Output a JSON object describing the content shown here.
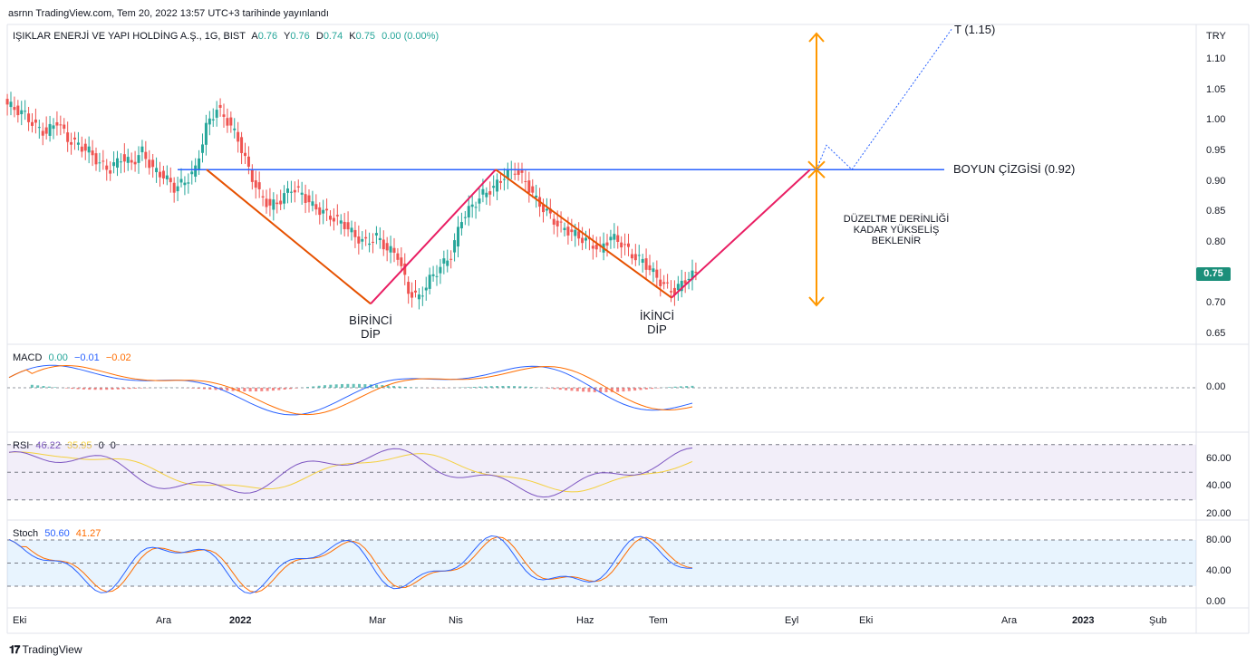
{
  "header": {
    "published_line": "asrnn TradingView.com, Tem 20, 2022 13:57 UTC+3 tarihinde yayınlandı"
  },
  "main_legend": {
    "symbol": "IŞIKLAR ENERJİ VE YAPI HOLDİNG A.Ş., 1G, BIST",
    "open_label": "A",
    "open": "0.76",
    "high_label": "Y",
    "high": "0.76",
    "low_label": "D",
    "low": "0.74",
    "close_label": "K",
    "close": "0.75",
    "change": "0.00 (0.00%)"
  },
  "currency": "TRY",
  "last_price_tag": "0.75",
  "price_axis_ticks": [
    "1.10",
    "1.05",
    "1.00",
    "0.95",
    "0.90",
    "0.85",
    "0.80",
    "0.75",
    "0.70",
    "0.65"
  ],
  "annotations": {
    "neckline": "BOYUN ÇİZGİSİ (0.92)",
    "target": "T (1.15)",
    "first_bottom_line1": "BİRİNCİ",
    "first_bottom_line2": "DİP",
    "second_bottom_line1": "İKİNCİ",
    "second_bottom_line2": "DİP",
    "correction_line1": "DÜZELTME DERİNLİĞİ",
    "correction_line2": "KADAR YÜKSELİŞ",
    "correction_line3": "BEKLENİR"
  },
  "macd": {
    "label": "MACD",
    "hist": "0.00",
    "macd": "−0.01",
    "signal": "−0.02",
    "axis_tick": "0.00"
  },
  "rsi": {
    "label": "RSI",
    "value": "46.22",
    "ma": "35.95",
    "extra1": "0",
    "extra2": "0",
    "axis_ticks": [
      "60.00",
      "40.00",
      "20.00"
    ]
  },
  "stoch": {
    "label": "Stoch",
    "k": "50.60",
    "d": "41.27",
    "axis_ticks": [
      "80.00",
      "40.00",
      "0.00"
    ]
  },
  "time_axis": [
    {
      "label": "Eki",
      "bold": false
    },
    {
      "label": "Ara",
      "bold": false
    },
    {
      "label": "2022",
      "bold": true
    },
    {
      "label": "Mar",
      "bold": false
    },
    {
      "label": "Nis",
      "bold": false
    },
    {
      "label": "Haz",
      "bold": false
    },
    {
      "label": "Tem",
      "bold": false
    },
    {
      "label": "Eyl",
      "bold": false
    },
    {
      "label": "Eki",
      "bold": false
    },
    {
      "label": "Ara",
      "bold": false
    },
    {
      "label": "2023",
      "bold": true
    },
    {
      "label": "Şub",
      "bold": false
    }
  ],
  "footer": {
    "brand": "TradingView"
  },
  "colors": {
    "up": "#26a69a",
    "down": "#ef5350",
    "neckline": "#2962ff",
    "pattern_left": "#e65100",
    "projection": "#e91e63",
    "target_arrow": "#ff9800",
    "macd": "#2962ff",
    "signal": "#ff6d00",
    "rsi": "#7e57c2",
    "rsi_ma": "#f4d03f",
    "stoch_k": "#2962ff",
    "stoch_d": "#ff6d00"
  },
  "chart_data": {
    "type": "candlestick",
    "title": "IŞIKLAR ENERJİ VE YAPI HOLDİNG A.Ş., 1G, BIST",
    "ylabel": "TRY",
    "ylim": [
      0.65,
      1.15
    ],
    "neckline": 0.92,
    "target": 1.15,
    "pattern_points": [
      {
        "label": "start",
        "close": 0.92
      },
      {
        "label": "first_bottom",
        "close": 0.7
      },
      {
        "label": "peak",
        "close": 0.92
      },
      {
        "label": "second_bottom",
        "close": 0.71
      },
      {
        "label": "breakout",
        "close": 0.92
      }
    ],
    "close_series": [
      1.02,
      1.01,
      0.99,
      0.98,
      1.0,
      0.97,
      0.96,
      0.95,
      0.93,
      0.92,
      0.94,
      0.93,
      0.95,
      0.92,
      0.91,
      0.89,
      0.9,
      0.92,
      0.99,
      1.02,
      1.0,
      0.97,
      0.92,
      0.88,
      0.86,
      0.87,
      0.89,
      0.88,
      0.86,
      0.85,
      0.84,
      0.83,
      0.81,
      0.8,
      0.81,
      0.79,
      0.78,
      0.72,
      0.71,
      0.74,
      0.76,
      0.78,
      0.84,
      0.86,
      0.88,
      0.89,
      0.91,
      0.92,
      0.9,
      0.87,
      0.85,
      0.83,
      0.82,
      0.81,
      0.8,
      0.79,
      0.81,
      0.8,
      0.78,
      0.77,
      0.75,
      0.73,
      0.72,
      0.74,
      0.75
    ]
  }
}
